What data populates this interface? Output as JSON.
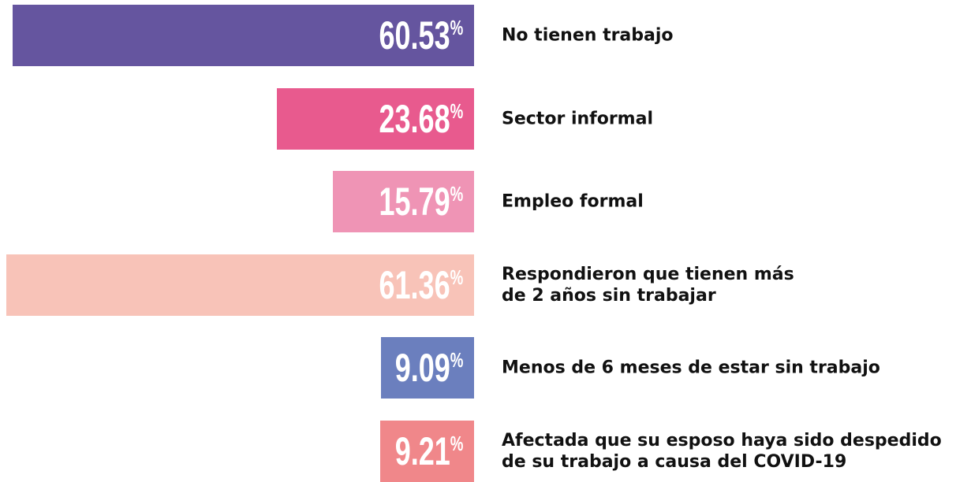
{
  "chart_data": {
    "type": "bar",
    "orientation": "horizontal",
    "categories": [
      "No tienen trabajo",
      "Sector informal",
      "Empleo formal",
      "Respondieron que tienen más\nde 2 años sin trabajar",
      "Menos de 6 meses de estar sin trabajo",
      "Afectada que su esposo haya sido despedido\nde su trabajo a causa del COVID-19"
    ],
    "values": [
      60.53,
      23.68,
      15.79,
      61.36,
      9.09,
      9.21
    ],
    "value_labels": [
      "60.53%",
      "23.68%",
      "15.79%",
      "61.36%",
      "9.09%",
      "9.21%"
    ],
    "colors": [
      "#65559f",
      "#e85a8e",
      "#ef94b5",
      "#f8c3b8",
      "#6b7fbe",
      "#f0878a"
    ]
  }
}
